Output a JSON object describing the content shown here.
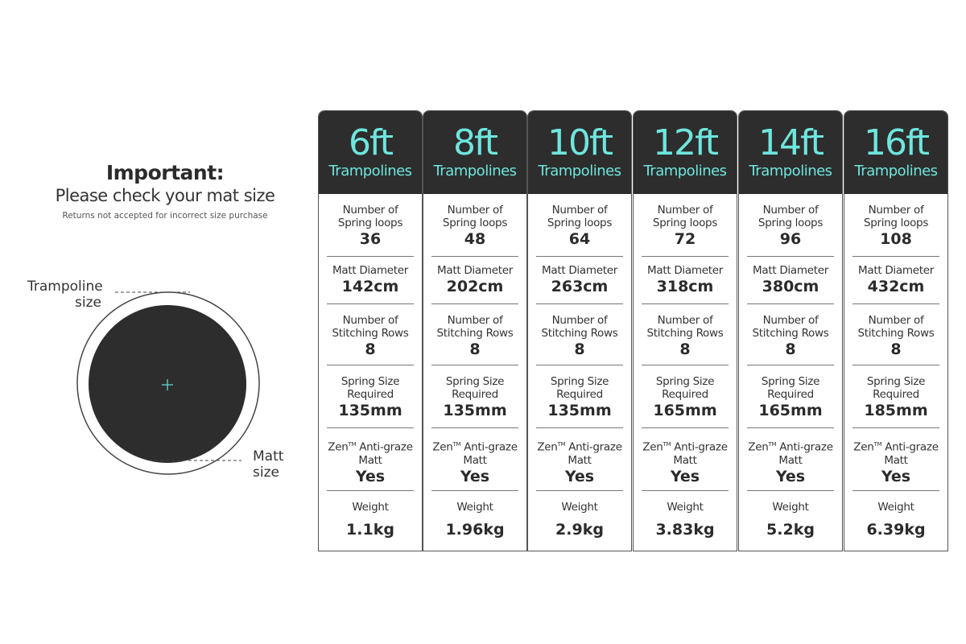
{
  "notice": {
    "title": "Important:",
    "subtitle": "Please check your mat size",
    "note": "Returns not accepted for incorrect size purchase"
  },
  "diagram": {
    "trampoline_label_1": "Trampoline",
    "trampoline_label_2": "size",
    "matt_label_1": "Matt",
    "matt_label_2": "size",
    "mat_color": "#2d2d2d",
    "accent": "#5fd6cc"
  },
  "row_labels": {
    "spring_loops": "Number of Spring loops",
    "matt_diameter": "Matt Diameter",
    "stitching_rows": "Number of Stitching Rows",
    "spring_size": "Spring Size Required",
    "zen_prefix": "Zen",
    "zen_tm": "TM",
    "zen_suffix": " Anti-graze Matt",
    "weight": "Weight"
  },
  "header_suffix": "Trampolines",
  "colors": {
    "header_bg": "#2d2d2d",
    "header_text": "#6ee6de"
  },
  "columns": [
    {
      "size": "6ft",
      "spring_loops": "36",
      "matt_diameter": "142cm",
      "stitching_rows": "8",
      "spring_size": "135mm",
      "zen": "Yes",
      "weight": "1.1kg"
    },
    {
      "size": "8ft",
      "spring_loops": "48",
      "matt_diameter": "202cm",
      "stitching_rows": "8",
      "spring_size": "135mm",
      "zen": "Yes",
      "weight": "1.96kg"
    },
    {
      "size": "10ft",
      "spring_loops": "64",
      "matt_diameter": "263cm",
      "stitching_rows": "8",
      "spring_size": "135mm",
      "zen": "Yes",
      "weight": "2.9kg"
    },
    {
      "size": "12ft",
      "spring_loops": "72",
      "matt_diameter": "318cm",
      "stitching_rows": "8",
      "spring_size": "165mm",
      "zen": "Yes",
      "weight": "3.83kg"
    },
    {
      "size": "14ft",
      "spring_loops": "96",
      "matt_diameter": "380cm",
      "stitching_rows": "8",
      "spring_size": "165mm",
      "zen": "Yes",
      "weight": "5.2kg"
    },
    {
      "size": "16ft",
      "spring_loops": "108",
      "matt_diameter": "432cm",
      "stitching_rows": "8",
      "spring_size": "185mm",
      "zen": "Yes",
      "weight": "6.39kg"
    }
  ]
}
